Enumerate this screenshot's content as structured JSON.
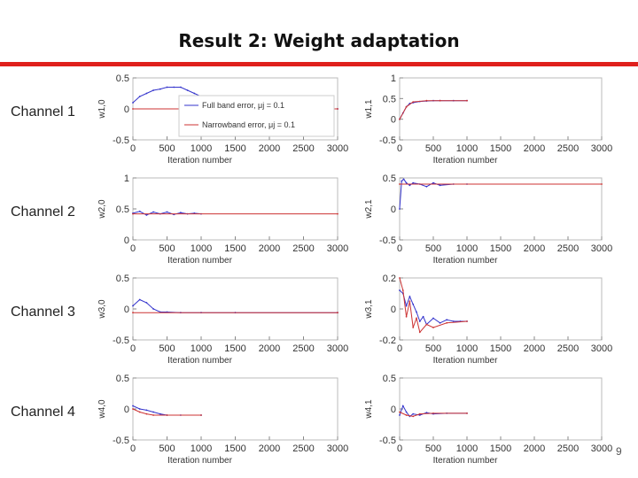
{
  "slide": {
    "title": "Result 2: Weight adaptation",
    "page_number": "9",
    "accent_color": "#e0201c"
  },
  "channels": [
    "Channel 1",
    "Channel 2",
    "Channel 3",
    "Channel 4"
  ],
  "chart_data": [
    {
      "type": "line",
      "ylabel": "w1,0",
      "xlabel": "Iteration number",
      "xlim": [
        0,
        3000
      ],
      "ylim": [
        -0.5,
        0.5
      ],
      "yticks": [
        "0.5",
        "0",
        "-0.5"
      ],
      "xticks": [
        "0",
        "500",
        "1000",
        "1500",
        "2000",
        "2500",
        "3000"
      ],
      "legend": {
        "placement": "right",
        "entries": [
          "Full band error, μj = 0.1",
          "Narrowband error, μj = 0.1"
        ]
      },
      "series": [
        {
          "color": "#3333cc",
          "x": [
            0,
            100,
            200,
            300,
            400,
            500,
            600,
            700,
            800,
            900,
            1000,
            1100,
            1200,
            1300,
            1400,
            1500,
            2000,
            2500,
            3000
          ],
          "y": [
            0.1,
            0.2,
            0.25,
            0.3,
            0.32,
            0.35,
            0.35,
            0.35,
            0.3,
            0.25,
            0.2,
            0.15,
            0.1,
            0.05,
            0.02,
            0,
            0,
            0,
            0
          ]
        },
        {
          "color": "#cc3333",
          "x": [
            0,
            3000
          ],
          "y": [
            0,
            0
          ]
        }
      ]
    },
    {
      "type": "line",
      "ylabel": "w1,1",
      "xlabel": "Iteration number",
      "xlim": [
        0,
        3000
      ],
      "ylim": [
        -0.5,
        1
      ],
      "yticks": [
        "1",
        "0.5",
        "0",
        "-0.5"
      ],
      "xticks": [
        "0",
        "500",
        "1000",
        "1500",
        "2000",
        "2500",
        "3000"
      ],
      "series": [
        {
          "color": "#3333cc",
          "x": [
            0,
            50,
            100,
            150,
            200,
            300,
            400,
            500,
            600,
            800,
            1000
          ],
          "y": [
            0,
            0.15,
            0.3,
            0.38,
            0.4,
            0.43,
            0.44,
            0.45,
            0.45,
            0.45,
            0.45
          ]
        },
        {
          "color": "#cc3333",
          "x": [
            0,
            100,
            200,
            400,
            600,
            1000
          ],
          "y": [
            0,
            0.3,
            0.42,
            0.45,
            0.45,
            0.45
          ]
        }
      ]
    },
    {
      "type": "line",
      "ylabel": "w2,0",
      "xlabel": "Iteration number",
      "xlim": [
        0,
        3000
      ],
      "ylim": [
        0,
        1
      ],
      "yticks": [
        "1",
        "0.5",
        "0"
      ],
      "xticks": [
        "0",
        "500",
        "1000",
        "1500",
        "2000",
        "2500",
        "3000"
      ],
      "series": [
        {
          "color": "#3333cc",
          "x": [
            0,
            100,
            200,
            300,
            400,
            500,
            600,
            700,
            800,
            900,
            1000
          ],
          "y": [
            0.43,
            0.46,
            0.4,
            0.45,
            0.42,
            0.45,
            0.41,
            0.44,
            0.42,
            0.43,
            0.42
          ]
        },
        {
          "color": "#cc3333",
          "x": [
            0,
            3000
          ],
          "y": [
            0.42,
            0.42
          ]
        }
      ]
    },
    {
      "type": "line",
      "ylabel": "w2,1",
      "xlabel": "Iteration number",
      "xlim": [
        0,
        3000
      ],
      "ylim": [
        -0.5,
        0.5
      ],
      "yticks": [
        "0.5",
        "0",
        "-0.5"
      ],
      "xticks": [
        "0",
        "500",
        "1000",
        "1500",
        "2000",
        "2500",
        "3000"
      ],
      "series": [
        {
          "color": "#3333cc",
          "x": [
            0,
            30,
            60,
            100,
            150,
            200,
            300,
            400,
            500,
            600,
            800,
            1000
          ],
          "y": [
            0,
            0.45,
            0.48,
            0.42,
            0.38,
            0.42,
            0.4,
            0.36,
            0.42,
            0.38,
            0.4,
            0.4
          ]
        },
        {
          "color": "#cc3333",
          "x": [
            0,
            3000
          ],
          "y": [
            0.4,
            0.4
          ]
        }
      ]
    },
    {
      "type": "line",
      "ylabel": "w3,0",
      "xlabel": "Iteration number",
      "xlim": [
        0,
        3000
      ],
      "ylim": [
        -0.5,
        0.5
      ],
      "yticks": [
        "0.5",
        "0",
        "-0.5"
      ],
      "xticks": [
        "0",
        "500",
        "1000",
        "1500",
        "2000",
        "2500",
        "3000"
      ],
      "series": [
        {
          "color": "#3333cc",
          "x": [
            0,
            100,
            200,
            300,
            400,
            500,
            700,
            1000,
            1500,
            3000
          ],
          "y": [
            0.05,
            0.15,
            0.1,
            0.0,
            -0.05,
            -0.05,
            -0.06,
            -0.06,
            -0.06,
            -0.06
          ]
        },
        {
          "color": "#cc3333",
          "x": [
            0,
            3000
          ],
          "y": [
            -0.06,
            -0.06
          ]
        }
      ]
    },
    {
      "type": "line",
      "ylabel": "w3,1",
      "xlabel": "Iteration number",
      "xlim": [
        0,
        3000
      ],
      "ylim": [
        -0.2,
        0.2
      ],
      "yticks": [
        "0.2",
        "0",
        "-0.2"
      ],
      "xticks": [
        "0",
        "500",
        "1000",
        "1500",
        "2000",
        "2500",
        "3000"
      ],
      "series": [
        {
          "color": "#3333cc",
          "x": [
            0,
            50,
            100,
            150,
            200,
            250,
            300,
            350,
            400,
            500,
            600,
            700,
            800,
            900,
            1000
          ],
          "y": [
            0.12,
            0.1,
            0.02,
            0.08,
            0.03,
            -0.02,
            -0.08,
            -0.05,
            -0.1,
            -0.06,
            -0.09,
            -0.07,
            -0.08,
            -0.08,
            -0.08
          ]
        },
        {
          "color": "#cc3333",
          "x": [
            0,
            50,
            100,
            150,
            200,
            250,
            300,
            400,
            500,
            700,
            1000
          ],
          "y": [
            0.2,
            0.12,
            -0.05,
            0.05,
            -0.12,
            -0.06,
            -0.15,
            -0.1,
            -0.12,
            -0.09,
            -0.08
          ]
        }
      ]
    },
    {
      "type": "line",
      "ylabel": "w4,0",
      "xlabel": "Iteration number",
      "xlim": [
        0,
        3000
      ],
      "ylim": [
        -0.5,
        0.5
      ],
      "yticks": [
        "0.5",
        "0",
        "-0.5"
      ],
      "xticks": [
        "0",
        "500",
        "1000",
        "1500",
        "2000",
        "2500",
        "3000"
      ],
      "series": [
        {
          "color": "#3333cc",
          "x": [
            0,
            100,
            200,
            300,
            400,
            500,
            700,
            1000
          ],
          "y": [
            0.05,
            0.0,
            -0.02,
            -0.05,
            -0.08,
            -0.1,
            -0.1,
            -0.1
          ]
        },
        {
          "color": "#cc3333",
          "x": [
            0,
            100,
            200,
            300,
            500,
            1000
          ],
          "y": [
            0.0,
            -0.05,
            -0.08,
            -0.1,
            -0.1,
            -0.1
          ]
        }
      ]
    },
    {
      "type": "line",
      "ylabel": "w4,1",
      "xlabel": "Iteration number",
      "xlim": [
        0,
        3000
      ],
      "ylim": [
        -0.5,
        0.5
      ],
      "yticks": [
        "0.5",
        "0",
        "-0.5"
      ],
      "xticks": [
        "0",
        "500",
        "1000",
        "1500",
        "2000",
        "2500",
        "3000"
      ],
      "series": [
        {
          "color": "#3333cc",
          "x": [
            0,
            50,
            100,
            150,
            200,
            300,
            400,
            500,
            700,
            1000
          ],
          "y": [
            -0.1,
            0.05,
            -0.05,
            -0.12,
            -0.08,
            -0.1,
            -0.06,
            -0.08,
            -0.07,
            -0.07
          ]
        },
        {
          "color": "#cc3333",
          "x": [
            0,
            100,
            200,
            300,
            500,
            1000
          ],
          "y": [
            -0.05,
            -0.1,
            -0.12,
            -0.08,
            -0.07,
            -0.07
          ]
        }
      ]
    }
  ]
}
